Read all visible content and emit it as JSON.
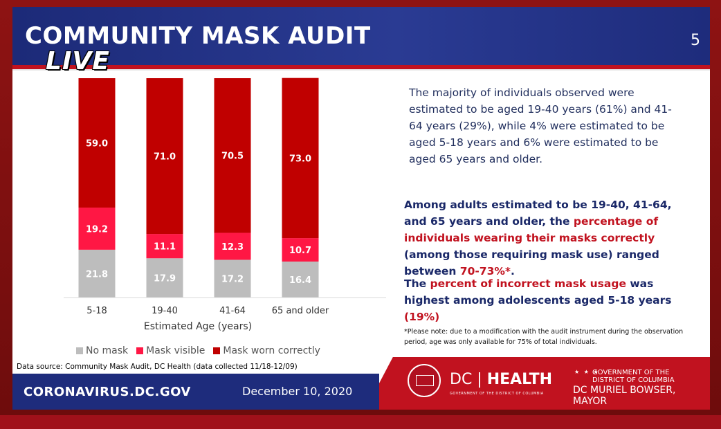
{
  "header": {
    "title": "COMMUNITY MASK AUDIT",
    "live_badge": "LIVE",
    "slide_number": "5"
  },
  "colors": {
    "navy": "#1e2c7c",
    "red": "#c1121f",
    "no_mask": "#bdbdbd",
    "mask_visible": "#ff1744",
    "mask_correct": "#c00000"
  },
  "chart_data": {
    "type": "bar",
    "stacked": true,
    "percent_stacked": true,
    "categories": [
      "5-18",
      "19-40",
      "41-64",
      "65 and older"
    ],
    "series": [
      {
        "name": "No mask",
        "values": [
          21.8,
          17.9,
          17.2,
          16.4
        ],
        "color": "#bdbdbd"
      },
      {
        "name": "Mask visible",
        "values": [
          19.2,
          11.1,
          12.3,
          10.7
        ],
        "color": "#ff1744"
      },
      {
        "name": "Mask worn correctly",
        "values": [
          59.0,
          71.0,
          70.5,
          73.0
        ],
        "color": "#c00000"
      }
    ],
    "xlabel": "Estimated Age (years)",
    "ylabel": "",
    "ylim": [
      0,
      100
    ],
    "legend_position": "bottom",
    "grid": false
  },
  "description": "The majority of individuals observed were estimated to be aged 19-40 years (61%) and 41-64 years (29%), while 4% were estimated to be aged 5-18 years and 6% were estimated to be aged 65 years and older.",
  "finding1": {
    "part1": "Among adults estimated to be 19-40, 41-64, and 65 years and older, the ",
    "highlight1": "percentage of individuals wearing their masks correctly",
    "part2": " (among those requiring mask use) ranged between ",
    "highlight2": "70-73%*",
    "part3": "."
  },
  "finding2": {
    "part1": "The ",
    "highlight1": "percent of incorrect mask usage",
    "part2": " was highest among adolescents aged 5-18 years ",
    "highlight2": "(19%)"
  },
  "note": "*Please note: due to a modification with the audit instrument during the observation period, age was only available for 75% of total individuals.",
  "source": "Data source: Community Mask Audit, DC Health (data collected 11/18-12/09)",
  "footer": {
    "site": "CORONAVIRUS.DC.GOV",
    "date": "December 10, 2020",
    "dc": "DC",
    "health": "HEALTH",
    "health_sub": "GOVERNMENT OF THE DISTRICT OF COLUMBIA",
    "gov_stars": "★ ★ ★",
    "gov_line1": "GOVERNMENT OF THE",
    "gov_line2": "DISTRICT OF COLUMBIA",
    "gov_line3": "DC MURIEL BOWSER, MAYOR"
  }
}
